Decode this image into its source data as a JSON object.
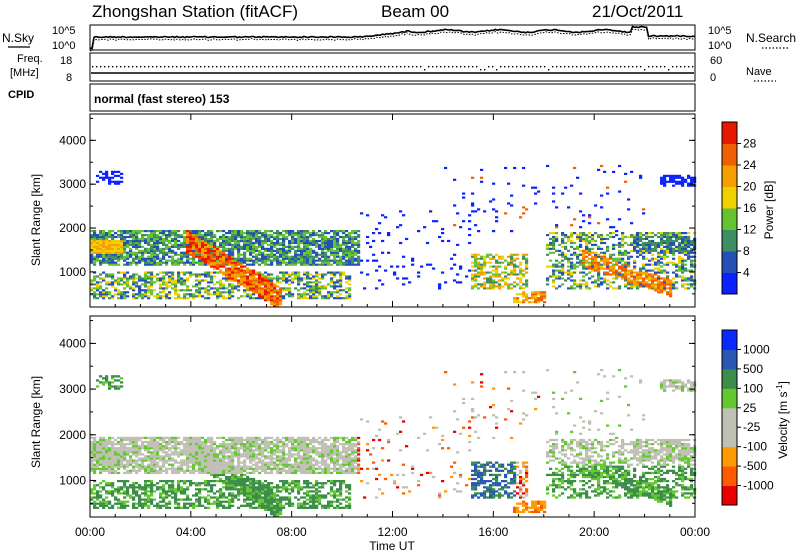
{
  "header": {
    "station": "Zhongshan Station (fitACF)",
    "beam": "Beam 00",
    "date": "21/Oct/2011"
  },
  "summary": {
    "nsky_label": "N.Sky",
    "nsky_ticks": [
      "10^5",
      "10^0"
    ],
    "nsearch_label": "N.Search",
    "nsearch_ticks": [
      "10^5",
      "10^0"
    ],
    "freq_label": "Freq.",
    "freq_unit": "[MHz]",
    "freq_ticks": [
      "18",
      "8"
    ],
    "nave_label": "Nave",
    "nave_ticks": [
      "60",
      "0"
    ],
    "cpid_label": "CPID",
    "cpid_text": "normal (fast stereo) 153"
  },
  "colors": {
    "power": [
      "#0a22ff",
      "#2350b7",
      "#3f8e62",
      "#64c233",
      "#f0d000",
      "#f5a000",
      "#f06000",
      "#e81800"
    ],
    "velocity": [
      "#e60000",
      "#ff5a00",
      "#ff9a00",
      "#c0c0b4",
      "#c0c0b4",
      "#64c832",
      "#3c8c4a",
      "#2858b4",
      "#0a28ff"
    ],
    "gray_scatter": "#c0c0b4"
  },
  "chart_data": [
    {
      "type": "heatmap",
      "name": "power",
      "xlabel": "",
      "ylabel": "Slant Range [km]",
      "yticks": [
        "1000",
        "2000",
        "3000",
        "4000"
      ],
      "ylim": [
        200,
        4600
      ],
      "xlim_hours": [
        0,
        24
      ],
      "colorbar_label": "Power [dB]",
      "colorbar_ticks": [
        "4",
        "8",
        "12",
        "16",
        "20",
        "24",
        "28"
      ],
      "clim": [
        0,
        32
      ]
    },
    {
      "type": "heatmap",
      "name": "velocity",
      "xlabel": "Time UT",
      "ylabel": "Slant Range [km]",
      "yticks": [
        "1000",
        "2000",
        "3000",
        "4000"
      ],
      "ylim": [
        200,
        4600
      ],
      "xlim_hours": [
        0,
        24
      ],
      "xticks": [
        "00:00",
        "04:00",
        "08:00",
        "12:00",
        "16:00",
        "20:00",
        "00:00"
      ],
      "colorbar_label": "Velocity [m s",
      "colorbar_label_sup": "-1",
      "colorbar_label_end": "]",
      "colorbar_ticks": [
        "-1000",
        "-500",
        "-100",
        "-25",
        "25",
        "100",
        "500",
        "1000"
      ]
    }
  ]
}
